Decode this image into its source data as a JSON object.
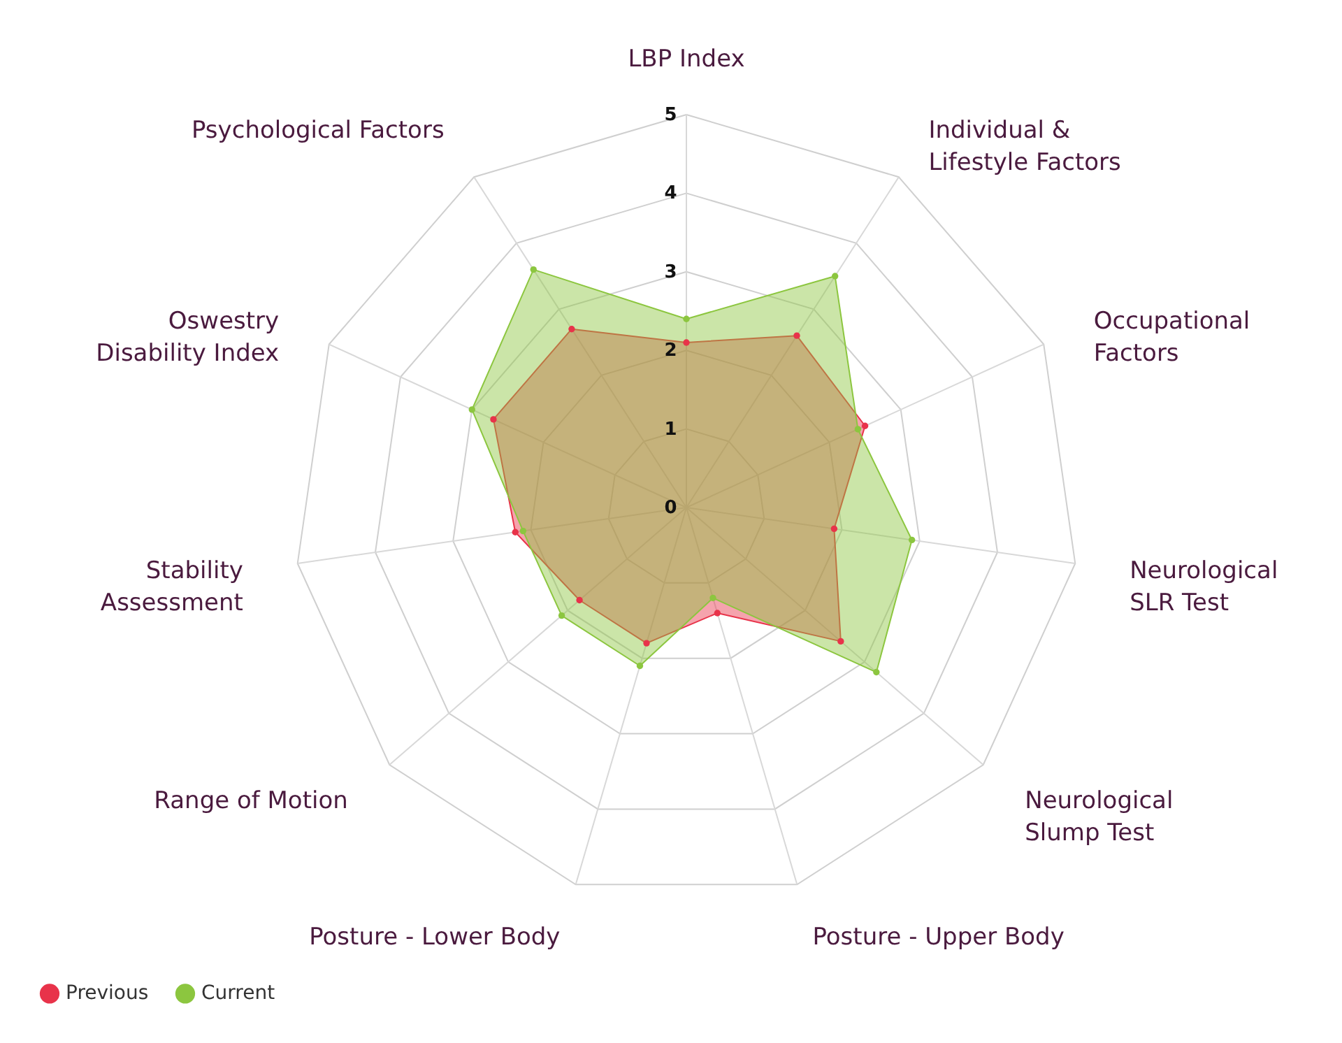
{
  "chart_data": {
    "type": "radar",
    "categories": [
      "LBP Index",
      "Individual &\nLifestyle Factors",
      "Occupational\nFactors",
      "Neurological\nSLR Test",
      "Neurological\nSlump Test",
      "Posture - Upper Body",
      "Posture - Lower Body",
      "Range of Motion",
      "Stability\nAssessment",
      "Oswestry\nDisability Index",
      "Psychological Factors"
    ],
    "series": [
      {
        "name": "Previous",
        "color": "#e8334a",
        "values": [
          2.1,
          2.6,
          2.5,
          1.9,
          2.6,
          1.4,
          1.8,
          1.8,
          2.2,
          2.7,
          2.7
        ]
      },
      {
        "name": "Current",
        "color": "#8cc63f",
        "values": [
          2.4,
          3.5,
          2.4,
          2.9,
          3.2,
          1.2,
          2.1,
          2.1,
          2.1,
          3.0,
          3.6
        ]
      }
    ],
    "ylim": [
      0,
      5
    ],
    "yticks": [
      0,
      1,
      2,
      3,
      4,
      5
    ],
    "grid": true,
    "legend": "bottom left",
    "marker": "circle"
  }
}
